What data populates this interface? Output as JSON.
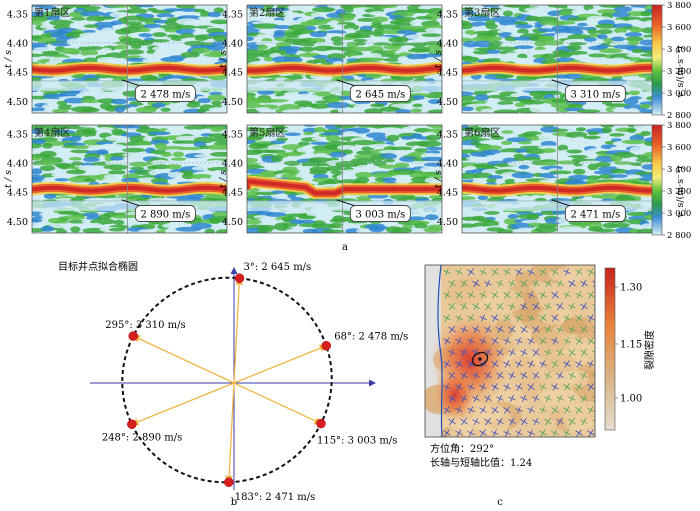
{
  "panel_a": {
    "label": "a",
    "y_axis_label": "t / s",
    "y_ticks": [
      "4.35",
      "4.40",
      "4.45",
      "4.50"
    ],
    "colorbar": {
      "label": "v_s/(m·s⁻¹)",
      "ticks": [
        "3 800",
        "3 600",
        "3 400",
        "3 200",
        "3 000",
        "2 800"
      ]
    },
    "sectors": [
      {
        "title": "第1扇区",
        "velocity": "2 478 m/s"
      },
      {
        "title": "第2扇区",
        "velocity": "2 645 m/s"
      },
      {
        "title": "第3扇区",
        "velocity": "3 310 m/s"
      },
      {
        "title": "第4扇区",
        "velocity": "2 890 m/s"
      },
      {
        "title": "第5扇区",
        "velocity": "3 003 m/s"
      },
      {
        "title": "第6扇区",
        "velocity": "2 471 m/s"
      }
    ]
  },
  "panel_b": {
    "label": "b",
    "title": "目标井点拟合椭圆",
    "points": [
      {
        "text": "3°: 2 645 m/s",
        "azimuth": 3,
        "velocity": 2645
      },
      {
        "text": "68°: 2 478 m/s",
        "azimuth": 68,
        "velocity": 2478
      },
      {
        "text": "115°: 3 003 m/s",
        "azimuth": 115,
        "velocity": 3003
      },
      {
        "text": "183°: 2 471 m/s",
        "azimuth": 183,
        "velocity": 2471
      },
      {
        "text": "248°: 2 890 m/s",
        "azimuth": 248,
        "velocity": 2890
      },
      {
        "text": "295°: 3 310 m/s",
        "azimuth": 295,
        "velocity": 3310
      }
    ]
  },
  "panel_c": {
    "label": "c",
    "colorbar": {
      "label": "裂隙密度",
      "ticks": [
        "1.30",
        "1.15",
        "1.00"
      ]
    },
    "azimuth_text": "方位角：292°",
    "ratio_text": "长轴与短轴比值：1.24"
  },
  "colors": {
    "high": "#d7302c",
    "mid_orange": "#f08a2a",
    "yellow": "#f2e06a",
    "green": "#3aa83a",
    "light_blue": "#b8e2ef",
    "deep_blue": "#1f72c8",
    "arrow": "#f2b544",
    "axis": "#3a3aa8",
    "point": "#d81f1f"
  }
}
